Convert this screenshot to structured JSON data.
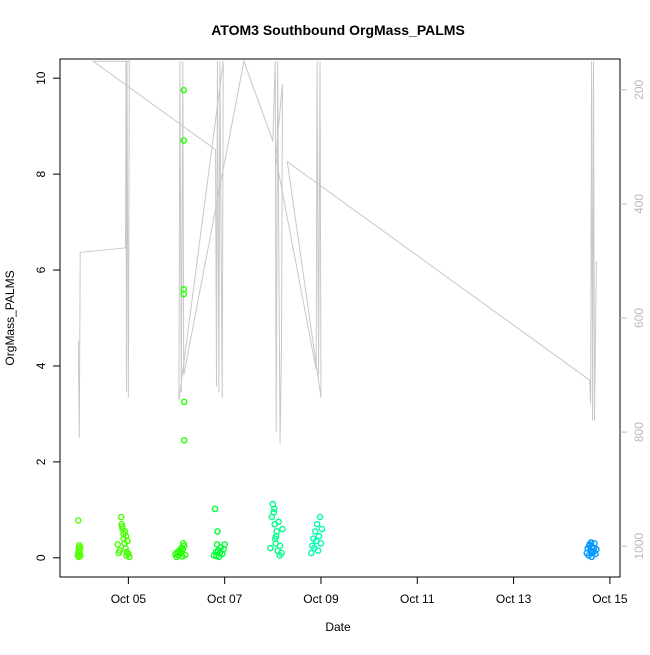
{
  "chart_data": {
    "type": "scatter",
    "title": "ATOM3 Southbound OrgMass_PALMS",
    "x_label": "Date",
    "y_label": "OrgMass_PALMS",
    "xlim": [
      3.58,
      15.21
    ],
    "xticks": [
      {
        "value": 5,
        "label": "Oct 05"
      },
      {
        "value": 7,
        "label": "Oct 07"
      },
      {
        "value": 9,
        "label": "Oct 09"
      },
      {
        "value": 11,
        "label": "Oct 11"
      },
      {
        "value": 13,
        "label": "Oct 13"
      },
      {
        "value": 15,
        "label": "Oct 15"
      }
    ],
    "ylim": [
      -0.4,
      10.4
    ],
    "yticks": [
      0,
      2,
      4,
      6,
      8,
      10
    ],
    "y2lim": [
      1054,
      146
    ],
    "y2ticks": [
      200,
      400,
      600,
      800,
      1000
    ],
    "y2_color": "#bbbbbb",
    "series": [
      {
        "type": "line",
        "axis": "y2",
        "color": "#c8c8c8",
        "x": [
          3.96,
          3.98,
          4.0,
          4.94,
          4.95,
          4.96,
          4.97,
          5.0,
          5.02,
          4.27,
          6.81,
          6.83,
          6.85,
          6.88,
          6.9,
          6.95,
          6.97,
          6.05,
          6.07,
          6.1,
          6.13,
          6.15,
          7.4,
          8.0,
          8.05,
          8.07,
          8.1,
          8.15,
          8.18,
          8.2,
          8.06,
          8.9,
          8.92,
          8.95,
          8.98,
          9.0,
          8.3,
          14.58,
          14.6,
          14.62,
          14.64,
          14.66,
          14.68,
          14.72
        ],
        "values": [
          640,
          810,
          485,
          477,
          150,
          730,
          150,
          740,
          150,
          150,
          305,
          720,
          150,
          730,
          150,
          740,
          150,
          744,
          150,
          730,
          150,
          700,
          150,
          290,
          150,
          800,
          150,
          820,
          650,
          190,
          318,
          690,
          150,
          700,
          150,
          740,
          326,
          709,
          750,
          150,
          780,
          150,
          780,
          500
        ]
      },
      {
        "type": "scatter",
        "color": "#55ff00",
        "x": [
          3.95,
          3.96,
          3.97,
          3.97,
          3.98,
          3.99,
          3.99,
          4.0,
          4.0,
          3.96
        ],
        "values": [
          0.05,
          0.12,
          0.2,
          0.02,
          0.26,
          0.1,
          0.16,
          0.04,
          0.22,
          0.78
        ]
      },
      {
        "type": "scatter",
        "color": "#44ff00",
        "x": [
          4.78,
          4.8,
          4.82,
          4.85,
          4.86,
          4.88,
          4.9,
          4.9,
          4.92,
          4.94,
          4.95,
          4.96,
          4.97,
          4.98,
          5.0,
          5.02,
          4.87,
          4.93
        ],
        "values": [
          0.28,
          0.1,
          0.15,
          0.85,
          0.7,
          0.6,
          0.5,
          0.4,
          0.3,
          0.2,
          0.45,
          0.05,
          0.12,
          0.35,
          0.08,
          0.02,
          0.65,
          0.55
        ]
      },
      {
        "type": "scatter",
        "color": "#22ff00",
        "x": [
          5.98,
          6.0,
          6.02,
          6.04,
          6.06,
          6.08,
          6.1,
          6.12,
          6.14,
          6.15,
          6.15,
          6.15,
          6.15,
          6.16,
          6.16,
          6.16,
          6.18,
          6.13
        ],
        "values": [
          0.08,
          0.02,
          0.12,
          0.05,
          0.15,
          0.1,
          0.2,
          0.03,
          0.3,
          9.75,
          8.7,
          5.6,
          5.5,
          3.25,
          2.45,
          0.25,
          0.06,
          0.18
        ]
      },
      {
        "type": "scatter",
        "color": "#00ff33",
        "x": [
          6.78,
          6.8,
          6.82,
          6.84,
          6.86,
          6.88,
          6.9,
          6.92,
          6.95,
          6.98,
          7.0,
          6.85,
          6.83
        ],
        "values": [
          0.05,
          1.02,
          0.12,
          0.28,
          0.15,
          0.02,
          0.1,
          0.22,
          0.08,
          0.18,
          0.28,
          0.55,
          0.04
        ]
      },
      {
        "type": "scatter",
        "color": "#00ff88",
        "x": [
          7.95,
          7.98,
          8.0,
          8.02,
          8.04,
          8.05,
          8.06,
          8.08,
          8.1,
          8.12,
          8.14,
          8.15,
          8.18,
          8.2,
          8.03,
          8.07
        ],
        "values": [
          0.2,
          0.85,
          1.12,
          0.95,
          0.7,
          0.4,
          0.3,
          0.55,
          0.15,
          0.75,
          0.05,
          0.25,
          0.1,
          0.6,
          1.02,
          0.45
        ]
      },
      {
        "type": "scatter",
        "color": "#00ffb0",
        "x": [
          8.8,
          8.82,
          8.84,
          8.86,
          8.88,
          8.9,
          8.92,
          8.94,
          8.96,
          8.98,
          9.0,
          9.02
        ],
        "values": [
          0.1,
          0.25,
          0.4,
          0.2,
          0.55,
          0.35,
          0.7,
          0.15,
          0.45,
          0.85,
          0.3,
          0.6
        ]
      },
      {
        "type": "scatter",
        "color": "#0099ff",
        "x": [
          14.52,
          14.54,
          14.56,
          14.58,
          14.6,
          14.61,
          14.62,
          14.64,
          14.66,
          14.68,
          14.7,
          14.72,
          14.57,
          14.63,
          14.67
        ],
        "values": [
          0.1,
          0.2,
          0.05,
          0.28,
          0.15,
          0.32,
          0.02,
          0.22,
          0.12,
          0.3,
          0.08,
          0.18,
          0.25,
          0.1,
          0.2
        ]
      }
    ]
  }
}
